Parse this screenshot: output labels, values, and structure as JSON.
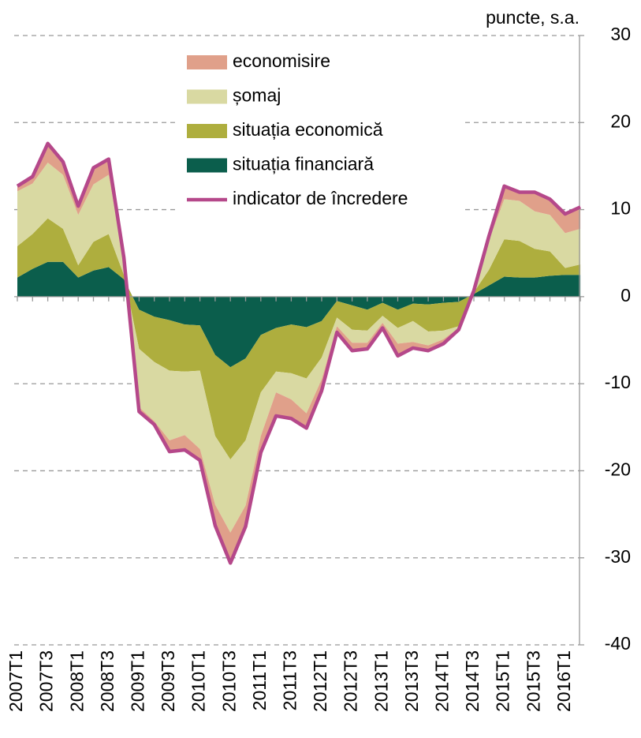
{
  "chart_data": {
    "type": "area",
    "unit_label": "puncte, s.a.",
    "categories": [
      "2007T1",
      null,
      "2007T3",
      null,
      "2008T1",
      null,
      "2008T3",
      null,
      "2009T1",
      null,
      "2009T3",
      null,
      "2010T1",
      null,
      "2010T3",
      null,
      "2011T1",
      null,
      "2011T3",
      null,
      "2012T1",
      null,
      "2012T3",
      null,
      "2013T1",
      null,
      "2013T3",
      null,
      "2014T1",
      null,
      "2014T3",
      null,
      "2015T1",
      null,
      "2015T3",
      null,
      "2016T1",
      null
    ],
    "series": [
      {
        "name": "situația financiară",
        "color": "#0b5e4c",
        "values": [
          2.2,
          3.2,
          4.0,
          4.0,
          2.2,
          3.0,
          3.4,
          2.0,
          -1.5,
          -2.3,
          -2.7,
          -3.2,
          -3.3,
          -6.7,
          -8.1,
          -7.1,
          -4.4,
          -3.6,
          -3.2,
          -3.5,
          -2.8,
          -0.5,
          -1.0,
          -1.5,
          -0.7,
          -1.5,
          -0.8,
          -0.9,
          -0.7,
          -0.6,
          0.3,
          1.3,
          2.3,
          2.2,
          2.2,
          2.4,
          2.5,
          2.5
        ]
      },
      {
        "name": "situația economică",
        "color": "#aeae3e",
        "values": [
          3.6,
          4.0,
          5.0,
          3.8,
          1.4,
          3.3,
          3.8,
          0.5,
          -4.5,
          -5.2,
          -5.8,
          -5.4,
          -5.2,
          -9.3,
          -10.6,
          -9.4,
          -6.6,
          -5.0,
          -5.6,
          -5.9,
          -4.2,
          -1.9,
          -2.8,
          -2.4,
          -1.5,
          -2.1,
          -2.0,
          -3.1,
          -3.2,
          -2.8,
          0.2,
          1.8,
          4.3,
          4.2,
          3.3,
          2.8,
          0.8,
          1.2
        ]
      },
      {
        "name": "șomaj",
        "color": "#d9d9a2",
        "values": [
          6.3,
          5.8,
          6.4,
          6.2,
          5.8,
          6.6,
          6.8,
          1.5,
          -6.7,
          -6.8,
          -8.0,
          -7.3,
          -9.0,
          -7.9,
          -8.4,
          -7.5,
          -5.0,
          -2.4,
          -3.0,
          -4.0,
          -2.5,
          -1.0,
          -1.5,
          -1.4,
          -0.8,
          -1.8,
          -2.4,
          -1.6,
          -1.0,
          -0.2,
          0.2,
          3.4,
          4.6,
          4.6,
          4.3,
          4.2,
          4.0,
          4.1
        ]
      },
      {
        "name": "economisire",
        "color": "#e0a08a",
        "values": [
          0.6,
          0.8,
          2.2,
          1.5,
          1.0,
          1.9,
          1.8,
          0.5,
          -0.5,
          -0.4,
          -1.3,
          -1.7,
          -1.3,
          -2.4,
          -3.5,
          -2.4,
          -1.9,
          -2.7,
          -2.2,
          -1.7,
          -1.3,
          -0.7,
          -0.9,
          -0.7,
          -0.6,
          -1.4,
          -0.7,
          -0.6,
          -0.5,
          -0.2,
          0.0,
          0.5,
          1.5,
          1.0,
          2.2,
          1.8,
          2.2,
          2.5
        ]
      },
      {
        "name": "indicator de încredere",
        "type": "line",
        "color": "#b5488a",
        "values": [
          12.7,
          13.8,
          17.6,
          15.5,
          10.4,
          14.8,
          15.8,
          4.5,
          -13.2,
          -14.7,
          -17.8,
          -17.6,
          -18.8,
          -26.3,
          -30.6,
          -26.4,
          -17.9,
          -13.7,
          -14.0,
          -15.1,
          -10.8,
          -4.1,
          -6.2,
          -6.0,
          -3.6,
          -6.8,
          -5.9,
          -6.2,
          -5.4,
          -3.8,
          0.7,
          7.0,
          12.7,
          12.0,
          12.0,
          11.2,
          9.5,
          10.3
        ]
      }
    ],
    "ylim": [
      -40,
      30
    ],
    "yticks": [
      -40,
      -30,
      -20,
      -10,
      0,
      10,
      20,
      30
    ],
    "grid": true
  }
}
